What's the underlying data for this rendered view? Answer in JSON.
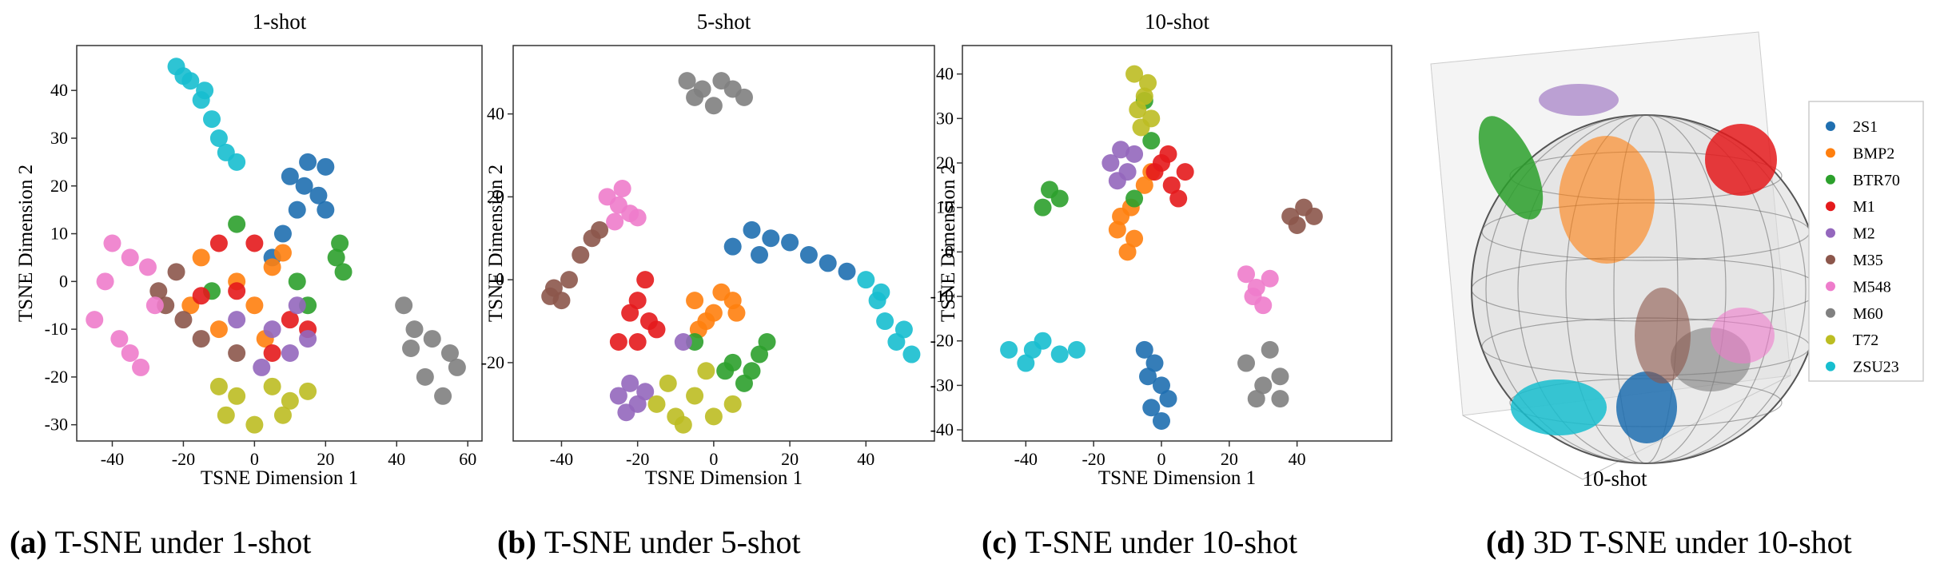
{
  "chart_data": [
    {
      "type": "scatter",
      "title": "1-shot",
      "x_label": "TSNE Dimension 1",
      "y_label": "TSNE Dimension 2",
      "xlim": [
        -50,
        64
      ],
      "ylim": [
        -33.4,
        49.4
      ],
      "xticks": [
        -40,
        -20,
        0,
        20,
        40,
        60
      ],
      "yticks": [
        -30,
        -20,
        -10,
        0,
        10,
        20,
        30,
        40
      ],
      "series": [
        {
          "color": "#1f6fb0",
          "x": [
            10,
            15,
            20,
            18,
            12,
            8,
            5,
            14,
            20
          ],
          "y": [
            22,
            25,
            24,
            18,
            15,
            10,
            5,
            20,
            15
          ]
        },
        {
          "color": "#ff7f0e",
          "x": [
            -15,
            -5,
            0,
            5,
            -10,
            3,
            -18,
            8
          ],
          "y": [
            5,
            0,
            -5,
            3,
            -10,
            -12,
            -5,
            6
          ]
        },
        {
          "color": "#2ca02c",
          "x": [
            23,
            25,
            24,
            -5,
            12,
            15,
            -12
          ],
          "y": [
            5,
            2,
            8,
            12,
            0,
            -5,
            -2
          ]
        },
        {
          "color": "#e41a1c",
          "x": [
            -10,
            -5,
            10,
            -15,
            5,
            15,
            0
          ],
          "y": [
            8,
            -2,
            -8,
            -3,
            -15,
            -10,
            8
          ]
        },
        {
          "color": "#9467bd",
          "x": [
            5,
            10,
            15,
            2,
            -5,
            12
          ],
          "y": [
            -10,
            -15,
            -12,
            -18,
            -8,
            -5
          ]
        },
        {
          "color": "#8c564b",
          "x": [
            -25,
            -20,
            -27,
            -5,
            -22,
            -15
          ],
          "y": [
            -5,
            -8,
            -2,
            -15,
            2,
            -12
          ]
        },
        {
          "color": "#ee7ccb",
          "x": [
            -40,
            -35,
            -45,
            -38,
            -32,
            -42,
            -30,
            -28,
            -35
          ],
          "y": [
            8,
            5,
            -8,
            -12,
            -18,
            0,
            3,
            -5,
            -15
          ]
        },
        {
          "color": "#808080",
          "x": [
            42,
            45,
            50,
            55,
            48,
            53,
            57,
            44
          ],
          "y": [
            -5,
            -10,
            -12,
            -15,
            -20,
            -24,
            -18,
            -14
          ]
        },
        {
          "color": "#bcbd22",
          "x": [
            -8,
            -5,
            0,
            5,
            10,
            15,
            -10,
            8
          ],
          "y": [
            -28,
            -24,
            -30,
            -22,
            -25,
            -23,
            -22,
            -28
          ]
        },
        {
          "color": "#17becf",
          "x": [
            -22,
            -18,
            -15,
            -12,
            -10,
            -8,
            -5,
            -14,
            -20
          ],
          "y": [
            45,
            42,
            38,
            34,
            30,
            27,
            25,
            40,
            43
          ]
        }
      ]
    },
    {
      "type": "scatter",
      "title": "5-shot",
      "x_label": "TSNE Dimension 1",
      "y_label": "TSNE Dimension 2",
      "xlim": [
        -52.7,
        58
      ],
      "ylim": [
        -38.9,
        56.5
      ],
      "xticks": [
        -40,
        -20,
        0,
        20,
        40
      ],
      "yticks": [
        -20,
        0,
        20,
        40
      ],
      "series": [
        {
          "color": "#1f6fb0",
          "x": [
            5,
            10,
            15,
            20,
            25,
            30,
            35,
            12
          ],
          "y": [
            8,
            12,
            10,
            9,
            6,
            4,
            2,
            6
          ]
        },
        {
          "color": "#ff7f0e",
          "x": [
            -5,
            0,
            5,
            2,
            -2,
            -4,
            6
          ],
          "y": [
            -5,
            -8,
            -5,
            -3,
            -10,
            -12,
            -8
          ]
        },
        {
          "color": "#2ca02c",
          "x": [
            5,
            10,
            12,
            8,
            3,
            14,
            -5
          ],
          "y": [
            -20,
            -22,
            -18,
            -25,
            -22,
            -15,
            -15
          ]
        },
        {
          "color": "#e41a1c",
          "x": [
            -20,
            -17,
            -15,
            -18,
            -22,
            -20,
            -25
          ],
          "y": [
            -5,
            -10,
            -12,
            0,
            -8,
            -15,
            -15
          ]
        },
        {
          "color": "#9467bd",
          "x": [
            -22,
            -20,
            -25,
            -18,
            -23,
            -8
          ],
          "y": [
            -25,
            -30,
            -28,
            -27,
            -32,
            -15
          ]
        },
        {
          "color": "#8c564b",
          "x": [
            -42,
            -40,
            -38,
            -35,
            -32,
            -30,
            -43
          ],
          "y": [
            -2,
            -5,
            0,
            6,
            10,
            12,
            -4
          ]
        },
        {
          "color": "#ee7ccb",
          "x": [
            -28,
            -25,
            -22,
            -20,
            -26,
            -24
          ],
          "y": [
            20,
            18,
            16,
            15,
            14,
            22
          ]
        },
        {
          "color": "#808080",
          "x": [
            -7,
            -5,
            0,
            5,
            8,
            2,
            -3
          ],
          "y": [
            48,
            44,
            42,
            46,
            44,
            48,
            46
          ]
        },
        {
          "color": "#bcbd22",
          "x": [
            -15,
            -10,
            -5,
            0,
            5,
            -12,
            -2,
            -8
          ],
          "y": [
            -30,
            -33,
            -28,
            -33,
            -30,
            -25,
            -22,
            -35
          ]
        },
        {
          "color": "#17becf",
          "x": [
            40,
            43,
            45,
            48,
            52,
            50,
            44
          ],
          "y": [
            0,
            -5,
            -10,
            -15,
            -18,
            -12,
            -3
          ]
        }
      ]
    },
    {
      "type": "scatter",
      "title": "10-shot",
      "x_label": "TSNE Dimension 1",
      "y_label": "TSNE Dimension 2",
      "xlim": [
        -58.7,
        67.9
      ],
      "ylim": [
        -42.5,
        46.4
      ],
      "xticks": [
        -40,
        -20,
        0,
        20,
        40
      ],
      "yticks": [
        -40,
        -30,
        -20,
        -10,
        0,
        10,
        20,
        30,
        40
      ],
      "series": [
        {
          "color": "#1f6fb0",
          "x": [
            -5,
            -2,
            0,
            -3,
            0,
            -4,
            2
          ],
          "y": [
            -22,
            -25,
            -30,
            -35,
            -38,
            -28,
            -33
          ]
        },
        {
          "color": "#ff7f0e",
          "x": [
            -5,
            -3,
            -10,
            -13,
            -8,
            -12,
            -9
          ],
          "y": [
            15,
            18,
            0,
            5,
            3,
            8,
            10
          ]
        },
        {
          "color": "#2ca02c",
          "x": [
            -35,
            -33,
            -30,
            -8,
            -3,
            -5
          ],
          "y": [
            10,
            14,
            12,
            12,
            25,
            34
          ]
        },
        {
          "color": "#e41a1c",
          "x": [
            -2,
            0,
            3,
            5,
            7,
            2
          ],
          "y": [
            18,
            20,
            15,
            12,
            18,
            22
          ]
        },
        {
          "color": "#9467bd",
          "x": [
            -15,
            -12,
            -10,
            -13,
            -8
          ],
          "y": [
            20,
            23,
            18,
            16,
            22
          ]
        },
        {
          "color": "#8c564b",
          "x": [
            38,
            42,
            45,
            40
          ],
          "y": [
            8,
            10,
            8,
            6
          ]
        },
        {
          "color": "#ee7ccb",
          "x": [
            25,
            28,
            30,
            27,
            32
          ],
          "y": [
            -5,
            -8,
            -12,
            -10,
            -6
          ]
        },
        {
          "color": "#808080",
          "x": [
            25,
            30,
            35,
            32,
            28,
            35
          ],
          "y": [
            -25,
            -30,
            -28,
            -22,
            -33,
            -33
          ]
        },
        {
          "color": "#bcbd22",
          "x": [
            -8,
            -5,
            -3,
            -7,
            -4,
            -6
          ],
          "y": [
            40,
            35,
            30,
            32,
            38,
            28
          ]
        },
        {
          "color": "#17becf",
          "x": [
            -45,
            -40,
            -35,
            -30,
            -25,
            -38
          ],
          "y": [
            -22,
            -25,
            -20,
            -23,
            -22,
            -22
          ]
        }
      ]
    },
    {
      "type": "scatter3d",
      "title": "10-shot",
      "legend": "right",
      "series": [
        {
          "name": "2S1",
          "color": "#1f6fb0"
        },
        {
          "name": "BMP2",
          "color": "#ff7f0e"
        },
        {
          "name": "BTR70",
          "color": "#2ca02c"
        },
        {
          "name": "M1",
          "color": "#e41a1c"
        },
        {
          "name": "M2",
          "color": "#9467bd"
        },
        {
          "name": "M35",
          "color": "#8c564b"
        },
        {
          "name": "M548",
          "color": "#ee7ccb"
        },
        {
          "name": "M60",
          "color": "#808080"
        },
        {
          "name": "T72",
          "color": "#bcbd22"
        },
        {
          "name": "ZSU23",
          "color": "#17becf"
        }
      ]
    }
  ],
  "captions": [
    {
      "label": "(a)",
      "text": "T-SNE under 1-shot"
    },
    {
      "label": "(b)",
      "text": "T-SNE under 5-shot"
    },
    {
      "label": "(c)",
      "text": "T-SNE under 10-shot"
    },
    {
      "label": "(d)",
      "text": "3D T-SNE under 10-shot"
    }
  ]
}
